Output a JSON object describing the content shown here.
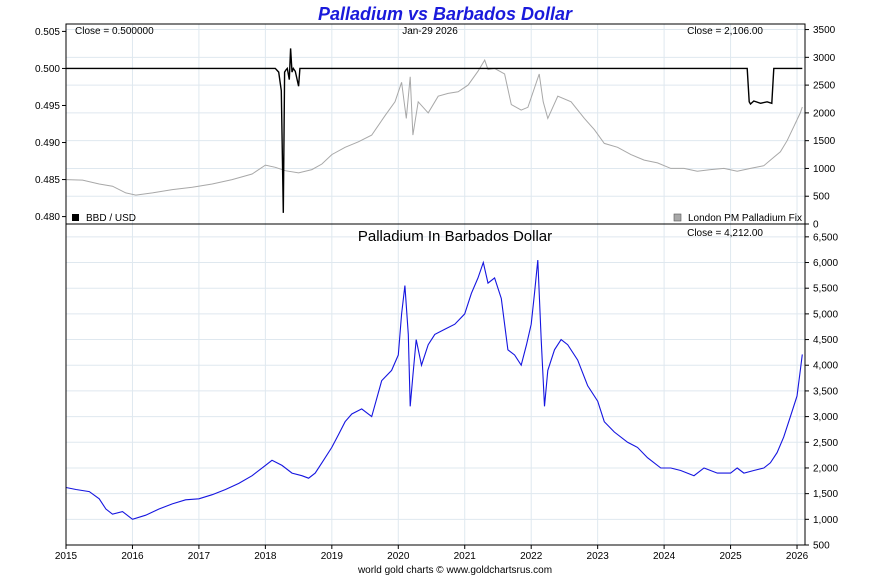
{
  "title": "Palladium vs Barbados Dollar",
  "footer": "world gold charts © www.goldchartsrus.com",
  "colors": {
    "title": "#1a1adb",
    "bbd_line": "#000000",
    "palladium_line": "#a8a8a8",
    "palladium_bbd_line": "#1515e0",
    "grid": "#dfe8ef",
    "frame": "#000000"
  },
  "chart_data": [
    {
      "type": "line",
      "panel": "top",
      "close_left": "Close = 0.500000",
      "date_label": "Jan-29  2026",
      "close_right": "Close = 2,106.00",
      "legend_left": "BBD / USD",
      "legend_right": "London PM Palladium Fix",
      "x_range": [
        2015.0,
        2026.12
      ],
      "y_left_range": [
        0.479,
        0.506
      ],
      "y_left_ticks": [
        "0.505",
        "0.500",
        "0.495",
        "0.490",
        "0.485",
        "0.480"
      ],
      "y_left_tick_values": [
        0.505,
        0.5,
        0.495,
        0.49,
        0.485,
        0.48
      ],
      "y_right_range": [
        0,
        3600
      ],
      "y_right_ticks": [
        "3500",
        "3000",
        "2500",
        "2000",
        "1500",
        "1000",
        "500",
        "0"
      ],
      "y_right_tick_values": [
        3500,
        3000,
        2500,
        2000,
        1500,
        1000,
        500,
        0
      ],
      "series": [
        {
          "name": "BBD / USD",
          "axis": "left",
          "x": [
            2015.0,
            2018.15,
            2018.2,
            2018.24,
            2018.27,
            2018.29,
            2018.31,
            2018.33,
            2018.36,
            2018.38,
            2018.4,
            2018.42,
            2018.45,
            2018.5,
            2018.52,
            2018.55,
            2018.6,
            2025.25,
            2025.28,
            2025.3,
            2025.35,
            2025.45,
            2025.55,
            2025.62,
            2025.65,
            2025.7,
            2026.08
          ],
          "y": [
            0.5,
            0.5,
            0.4995,
            0.497,
            0.4805,
            0.4995,
            0.4998,
            0.5,
            0.4985,
            0.5027,
            0.4995,
            0.5,
            0.4996,
            0.4976,
            0.5,
            0.5,
            0.5,
            0.5,
            0.4955,
            0.4952,
            0.4956,
            0.4953,
            0.4955,
            0.4953,
            0.5,
            0.5,
            0.5
          ]
        },
        {
          "name": "London PM Palladium Fix",
          "axis": "right",
          "x": [
            2015.0,
            2015.25,
            2015.5,
            2015.7,
            2015.9,
            2016.05,
            2016.3,
            2016.6,
            2016.9,
            2017.2,
            2017.5,
            2017.8,
            2018.0,
            2018.15,
            2018.3,
            2018.5,
            2018.7,
            2018.85,
            2019.0,
            2019.2,
            2019.4,
            2019.6,
            2019.8,
            2019.95,
            2020.05,
            2020.12,
            2020.18,
            2020.22,
            2020.3,
            2020.45,
            2020.6,
            2020.75,
            2020.9,
            2021.05,
            2021.2,
            2021.3,
            2021.35,
            2021.45,
            2021.6,
            2021.7,
            2021.85,
            2021.95,
            2022.05,
            2022.12,
            2022.18,
            2022.25,
            2022.4,
            2022.6,
            2022.8,
            2022.95,
            2023.1,
            2023.3,
            2023.5,
            2023.7,
            2023.9,
            2024.1,
            2024.3,
            2024.5,
            2024.7,
            2024.9,
            2025.1,
            2025.3,
            2025.5,
            2025.65,
            2025.75,
            2025.85,
            2025.95,
            2026.05,
            2026.08
          ],
          "y": [
            800,
            790,
            720,
            680,
            560,
            520,
            560,
            620,
            660,
            720,
            800,
            900,
            1060,
            1020,
            960,
            920,
            980,
            1080,
            1250,
            1380,
            1480,
            1600,
            1950,
            2200,
            2550,
            1900,
            2650,
            1600,
            2200,
            2000,
            2300,
            2350,
            2380,
            2500,
            2750,
            2950,
            2780,
            2800,
            2700,
            2150,
            2050,
            2100,
            2450,
            2700,
            2200,
            1900,
            2300,
            2200,
            1900,
            1700,
            1450,
            1380,
            1250,
            1150,
            1100,
            1000,
            1000,
            950,
            980,
            1000,
            950,
            1000,
            1050,
            1200,
            1300,
            1500,
            1750,
            2000,
            2106
          ]
        }
      ]
    },
    {
      "type": "line",
      "panel": "bottom",
      "title": "Palladium In Barbados Dollar",
      "close_right": "Close = 4,212.00",
      "x_range": [
        2015.0,
        2026.12
      ],
      "y_right_range": [
        500,
        6750
      ],
      "y_ticks": [
        "6,500",
        "6,000",
        "5,500",
        "5,000",
        "4,500",
        "4,000",
        "3,500",
        "3,000",
        "2,500",
        "2,000",
        "1,500",
        "1,000",
        "500"
      ],
      "y_tick_values": [
        6500,
        6000,
        5500,
        5000,
        4500,
        4000,
        3500,
        3000,
        2500,
        2000,
        1500,
        1000,
        500
      ],
      "x_ticks": [
        "2015",
        "2016",
        "2017",
        "2018",
        "2019",
        "2020",
        "2021",
        "2022",
        "2023",
        "2024",
        "2025",
        "2026"
      ],
      "x_tick_values": [
        2015,
        2016,
        2017,
        2018,
        2019,
        2020,
        2021,
        2022,
        2023,
        2024,
        2025,
        2026
      ],
      "series": [
        {
          "name": "Palladium In Barbados Dollar",
          "x": [
            2015.0,
            2015.15,
            2015.35,
            2015.5,
            2015.6,
            2015.7,
            2015.85,
            2016.0,
            2016.2,
            2016.4,
            2016.6,
            2016.8,
            2017.0,
            2017.2,
            2017.4,
            2017.6,
            2017.8,
            2018.0,
            2018.1,
            2018.25,
            2018.4,
            2018.55,
            2018.65,
            2018.75,
            2018.85,
            2019.0,
            2019.1,
            2019.2,
            2019.3,
            2019.45,
            2019.6,
            2019.75,
            2019.9,
            2020.0,
            2020.05,
            2020.1,
            2020.15,
            2020.18,
            2020.22,
            2020.27,
            2020.35,
            2020.45,
            2020.55,
            2020.7,
            2020.85,
            2021.0,
            2021.1,
            2021.2,
            2021.28,
            2021.35,
            2021.45,
            2021.55,
            2021.65,
            2021.75,
            2021.85,
            2021.93,
            2022.0,
            2022.05,
            2022.1,
            2022.15,
            2022.2,
            2022.25,
            2022.35,
            2022.45,
            2022.55,
            2022.7,
            2022.85,
            2023.0,
            2023.1,
            2023.25,
            2023.45,
            2023.6,
            2023.75,
            2023.95,
            2024.1,
            2024.25,
            2024.45,
            2024.6,
            2024.8,
            2025.0,
            2025.1,
            2025.2,
            2025.35,
            2025.5,
            2025.6,
            2025.7,
            2025.8,
            2025.9,
            2026.0,
            2026.05,
            2026.08
          ],
          "y": [
            1620,
            1580,
            1540,
            1400,
            1200,
            1100,
            1150,
            1000,
            1080,
            1200,
            1300,
            1380,
            1400,
            1480,
            1580,
            1700,
            1850,
            2050,
            2150,
            2050,
            1900,
            1850,
            1800,
            1900,
            2100,
            2400,
            2650,
            2900,
            3050,
            3150,
            3000,
            3700,
            3900,
            4200,
            5000,
            5550,
            4600,
            3200,
            3800,
            4500,
            4000,
            4400,
            4600,
            4700,
            4800,
            5000,
            5400,
            5700,
            6000,
            5600,
            5700,
            5300,
            4300,
            4200,
            4000,
            4400,
            4800,
            5400,
            6050,
            4500,
            3200,
            3900,
            4300,
            4500,
            4400,
            4100,
            3600,
            3300,
            2900,
            2700,
            2500,
            2400,
            2200,
            2000,
            2000,
            1950,
            1850,
            2000,
            1900,
            1900,
            2000,
            1900,
            1950,
            2000,
            2100,
            2300,
            2600,
            3000,
            3400,
            3900,
            4212
          ]
        }
      ]
    }
  ]
}
